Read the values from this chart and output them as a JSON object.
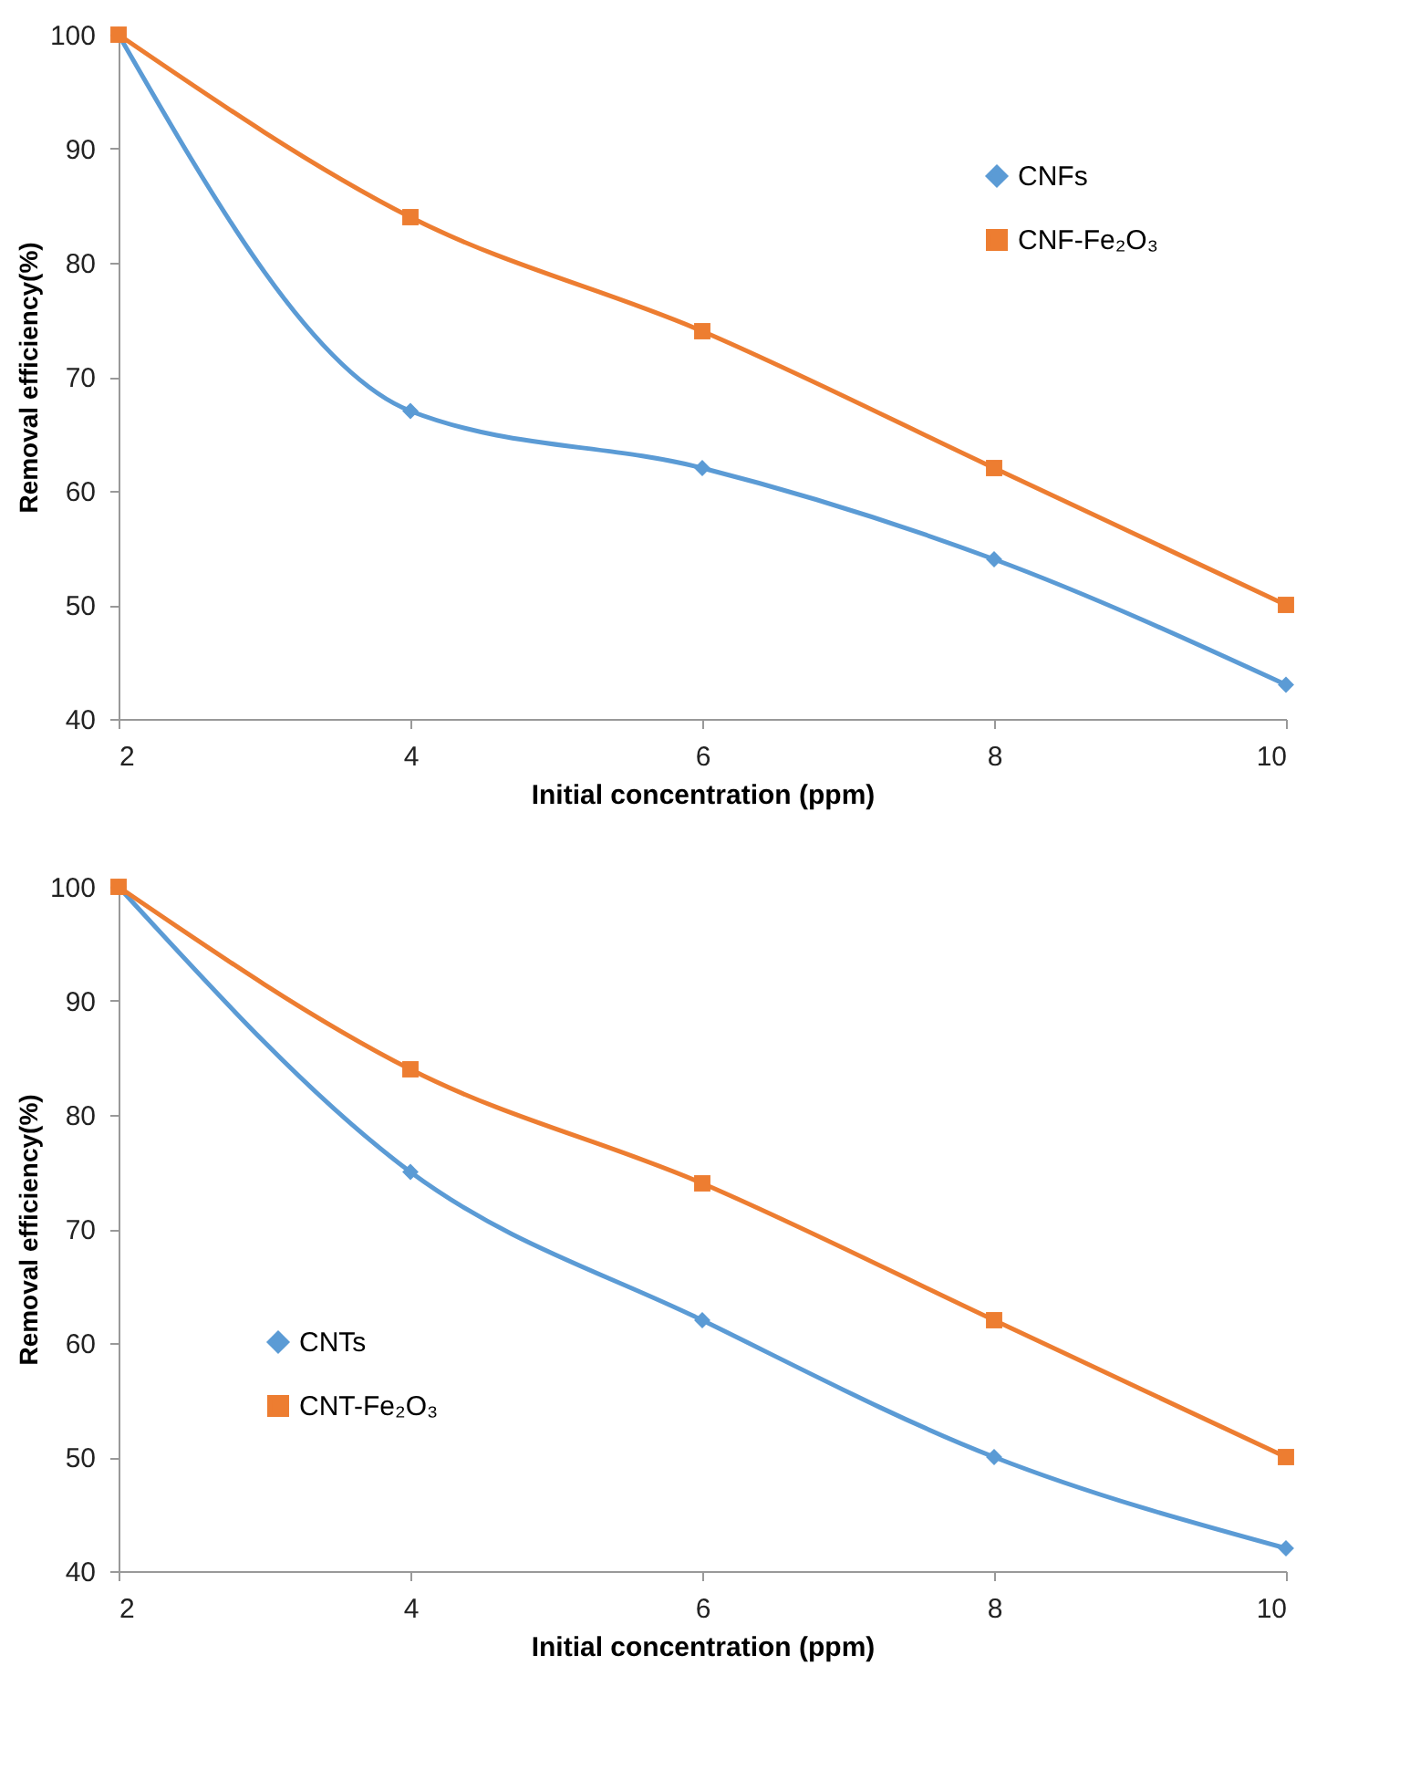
{
  "chart_data": [
    {
      "type": "line",
      "xlabel": "Initial concentration (ppm)",
      "ylabel": "Removal efficiency(%)",
      "x": [
        2,
        4,
        6,
        8,
        10
      ],
      "xlim": [
        2,
        10
      ],
      "xticks": [
        2,
        4,
        6,
        8,
        10
      ],
      "ylim": [
        40,
        100
      ],
      "yticks": [
        40,
        50,
        60,
        70,
        80,
        90,
        100
      ],
      "legend": "top right",
      "series": [
        {
          "name": "CNFs",
          "color": "#5b9bd5",
          "marker": "diamond",
          "values": [
            100,
            67,
            62,
            54,
            43
          ]
        },
        {
          "name": "CNF-Fe₂O₃",
          "color": "#ed7d31",
          "marker": "square",
          "values": [
            100,
            84,
            74,
            62,
            50
          ]
        }
      ]
    },
    {
      "type": "line",
      "xlabel": "Initial concentration (ppm)",
      "ylabel": "Removal efficiency(%)",
      "x": [
        2,
        4,
        6,
        8,
        10
      ],
      "xlim": [
        2,
        10
      ],
      "xticks": [
        2,
        4,
        6,
        8,
        10
      ],
      "ylim": [
        40,
        100
      ],
      "yticks": [
        40,
        50,
        60,
        70,
        80,
        90,
        100
      ],
      "legend": "bottom left",
      "series": [
        {
          "name": "CNTs",
          "color": "#5b9bd5",
          "marker": "diamond",
          "values": [
            100,
            75,
            62,
            50,
            42
          ]
        },
        {
          "name": "CNT-Fe₂O₃",
          "color": "#ed7d31",
          "marker": "square",
          "values": [
            100,
            84,
            74,
            62,
            50
          ]
        }
      ]
    }
  ]
}
